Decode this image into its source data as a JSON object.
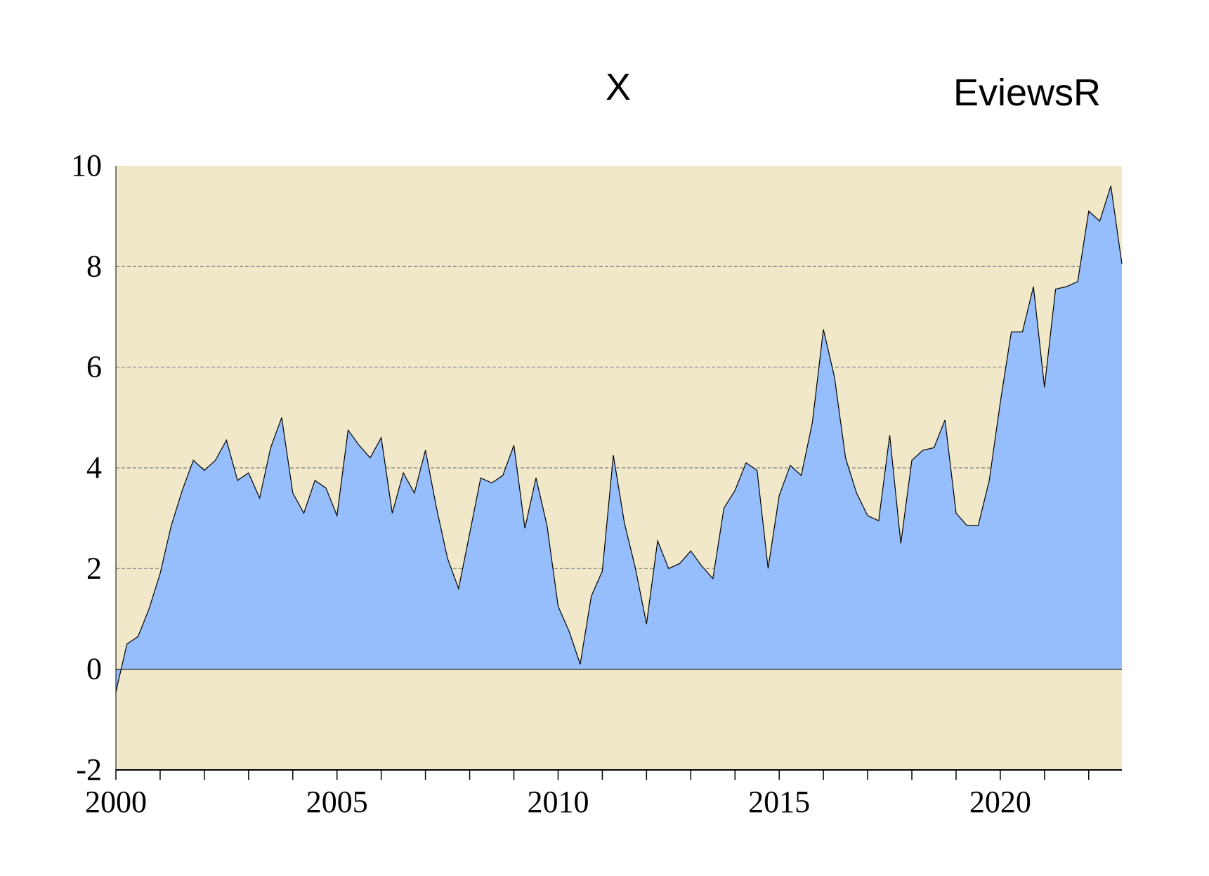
{
  "chart_data": {
    "type": "area",
    "title": "X",
    "watermark": "EviewsR",
    "xlabel": "",
    "ylabel": "",
    "frequency": "quarterly",
    "x_start": 2000.0,
    "x_step": 0.25,
    "xlim": [
      2000,
      2022.75
    ],
    "ylim": [
      -2,
      10
    ],
    "yticks": [
      -2,
      0,
      2,
      4,
      6,
      8,
      10
    ],
    "ytick_labels": [
      "-2",
      "0",
      "2",
      "4",
      "6",
      "8",
      "10"
    ],
    "xtick_labels": [
      "2000",
      "2005",
      "2010",
      "2015",
      "2020"
    ],
    "xtick_values": [
      2000,
      2005,
      2010,
      2015,
      2020
    ],
    "grid": "horizontal dashed",
    "colors": {
      "background": "#F0E8C8",
      "fill": "#96BEFC",
      "line": "#000000",
      "grid": "#808080"
    },
    "values": [
      -0.45,
      0.5,
      0.65,
      1.2,
      1.9,
      2.85,
      3.55,
      4.15,
      3.95,
      4.15,
      4.55,
      3.75,
      3.9,
      3.4,
      4.4,
      5.0,
      3.5,
      3.1,
      3.75,
      3.6,
      3.05,
      4.75,
      4.45,
      4.2,
      4.6,
      3.1,
      3.9,
      3.5,
      4.35,
      3.2,
      2.2,
      1.6,
      2.7,
      3.8,
      3.7,
      3.85,
      4.45,
      2.8,
      3.8,
      2.85,
      1.25,
      0.75,
      0.1,
      1.45,
      1.95,
      4.25,
      2.9,
      2.0,
      0.9,
      2.55,
      2.0,
      2.1,
      2.35,
      2.05,
      1.8,
      3.2,
      3.55,
      4.1,
      3.95,
      2.0,
      3.45,
      4.05,
      3.85,
      4.9,
      6.75,
      5.8,
      4.2,
      3.5,
      3.05,
      2.95,
      4.65,
      2.5,
      4.15,
      4.35,
      4.4,
      4.95,
      3.1,
      2.85,
      2.85,
      3.75,
      5.3,
      6.7,
      6.7,
      7.6,
      5.6,
      7.55,
      7.6,
      7.7,
      9.1,
      8.9,
      9.6,
      8.05
    ]
  }
}
